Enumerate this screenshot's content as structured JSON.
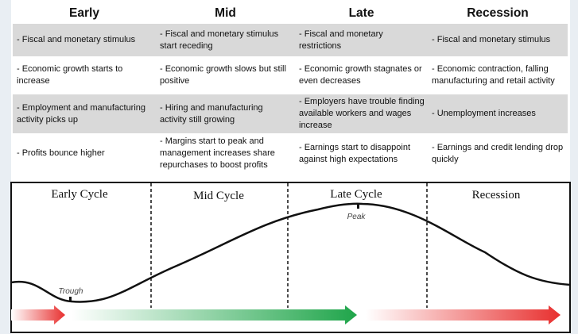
{
  "headers": [
    "Early",
    "Mid",
    "Late",
    "Recession"
  ],
  "rows": [
    [
      "- Fiscal and monetary stimulus",
      "- Fiscal and monetary stimulus start receding",
      "- Fiscal and monetary restrictions",
      "- Fiscal and monetary stimulus"
    ],
    [
      "- Economic growth starts to increase",
      "- Economic growth slows but still positive",
      "- Economic growth stagnates or even decreases",
      "- Economic contraction, falling manufacturing and retail activity"
    ],
    [
      "- Employment and manufacturing activity picks up",
      "- Hiring and manufacturing activity still growing",
      "- Employers have trouble finding available workers and wages increase",
      "- Unemployment increases"
    ],
    [
      "- Profits bounce higher",
      "- Margins start to peak and management increases share repurchases to boost profits",
      "- Earnings start to disappoint against high expectations",
      "- Earnings and credit lending drop quickly"
    ]
  ],
  "diagram": {
    "phases": [
      "Early Cycle",
      "Mid Cycle",
      "Late Cycle",
      "Recession"
    ],
    "trough_label": "Trough",
    "peak_label": "Peak"
  },
  "colors": {
    "red_arrow": "#e8302f",
    "green_arrow": "#1fa54a",
    "row_shade": "#d9d9d9"
  }
}
